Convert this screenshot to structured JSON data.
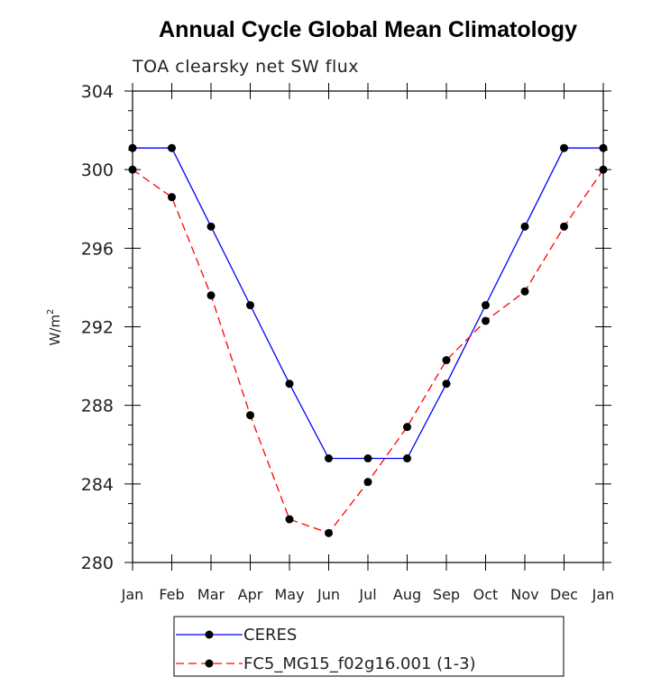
{
  "chart_data": {
    "type": "line",
    "title": "Annual Cycle Global Mean Climatology",
    "subtitle": "TOA clearsky net SW flux",
    "ylabel": "W/m",
    "ylabel_superscript": "2",
    "xlabel": "",
    "categories": [
      "Jan",
      "Feb",
      "Mar",
      "Apr",
      "May",
      "Jun",
      "Jul",
      "Aug",
      "Sep",
      "Oct",
      "Nov",
      "Dec",
      "Jan"
    ],
    "ylim": [
      280,
      304
    ],
    "yticks": [
      280,
      284,
      288,
      292,
      296,
      300,
      304
    ],
    "yminor_step": 1,
    "series": [
      {
        "name": "CERES",
        "color": "#0000ff",
        "dash": "solid",
        "values": [
          301.1,
          301.1,
          297.1,
          293.1,
          289.1,
          285.3,
          285.3,
          285.3,
          289.1,
          293.1,
          297.1,
          301.1,
          301.1
        ]
      },
      {
        "name": "FC5_MG15_f02g16.001 (1-3)",
        "color": "#ff0000",
        "dash": "dashed",
        "values": [
          300.0,
          298.6,
          293.6,
          287.5,
          282.2,
          281.5,
          284.1,
          286.9,
          290.3,
          292.3,
          293.8,
          297.1,
          300.0
        ]
      }
    ],
    "legend_position": "bottom"
  }
}
